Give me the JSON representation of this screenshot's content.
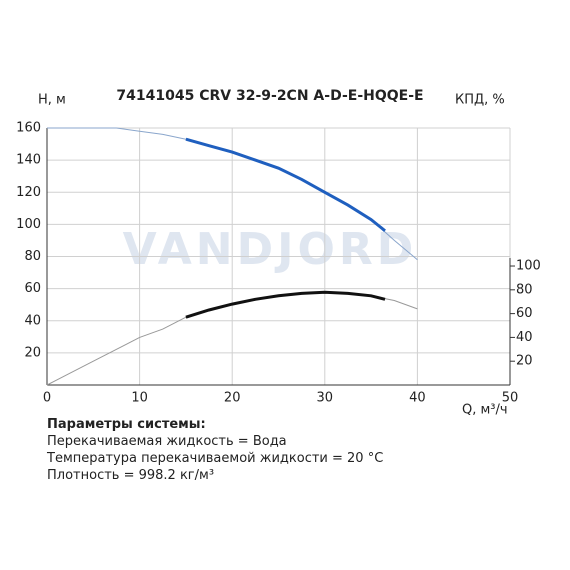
{
  "chart_data": {
    "type": "line",
    "title": "74141045 CRV 32-9-2CN A-D-E-HQQE-E",
    "watermark": "VANDJORD",
    "y_label": "H, м",
    "y2_label": "КПД, %",
    "x_label": "Q, м³/ч",
    "xlim": [
      0,
      50
    ],
    "xticks": [
      0,
      10,
      20,
      30,
      40,
      50
    ],
    "ylim": [
      0,
      160
    ],
    "yticks": [
      20,
      40,
      60,
      80,
      100,
      120,
      140,
      160
    ],
    "y2lim": [
      0,
      216
    ],
    "y2ticks": [
      20,
      40,
      60,
      80,
      100
    ],
    "grid": true,
    "series": [
      {
        "color": "#8aa6cc",
        "width": 1,
        "x": [
          0,
          2.5,
          5,
          7.5,
          10,
          12.5,
          15,
          17.5,
          20,
          22.5,
          25,
          27.5,
          30,
          32.5,
          35,
          37.5,
          40
        ],
        "values": [
          160,
          160,
          160,
          160,
          158,
          156,
          153,
          149,
          145,
          140,
          135,
          128,
          120,
          112,
          103,
          90,
          78
        ]
      },
      {
        "color": "#1f5fbf",
        "width": 3,
        "x": [
          15,
          17.5,
          20,
          22.5,
          25,
          27.5,
          30,
          32.5,
          35,
          36.5
        ],
        "values": [
          153,
          149,
          145,
          140,
          135,
          128,
          120,
          112,
          103,
          96
        ]
      },
      {
        "color": "#999999",
        "width": 1,
        "axis": "y2",
        "x": [
          0,
          2.5,
          5,
          7.5,
          10,
          12.5,
          15,
          17.5,
          20,
          22.5,
          25,
          27.5,
          30,
          32.5,
          35,
          37.5,
          40
        ],
        "values": [
          0,
          10,
          20,
          30,
          40,
          47,
          57,
          63,
          68,
          72,
          75,
          77,
          78,
          77,
          75,
          71,
          64
        ]
      },
      {
        "color": "#111111",
        "width": 3,
        "axis": "y2",
        "x": [
          15,
          17.5,
          20,
          22.5,
          25,
          27.5,
          30,
          32.5,
          35,
          36.5
        ],
        "values": [
          57,
          63,
          68,
          72,
          75,
          77,
          78,
          77,
          75,
          72
        ]
      }
    ]
  },
  "parameters": {
    "heading": "Параметры системы:",
    "lines": [
      "Перекачиваемая жидкость = Вода",
      "Температура перекачиваемой жидкости = 20 °C",
      "Плотность = 998.2 кг/м³"
    ]
  }
}
